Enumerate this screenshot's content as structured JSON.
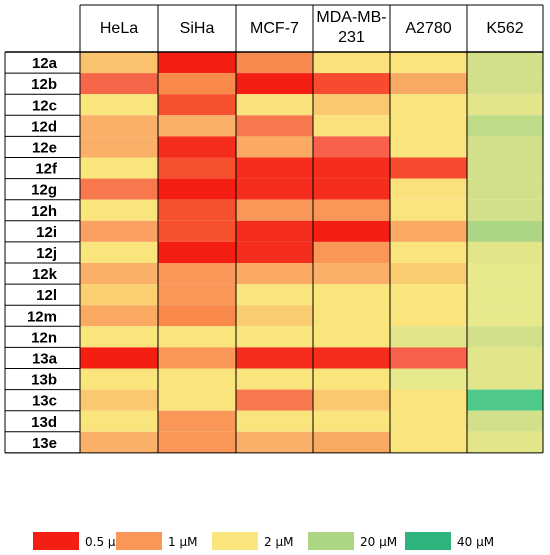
{
  "chart_data": {
    "type": "heatmap",
    "title": "",
    "xlabel": "",
    "ylabel": "",
    "columns": [
      "HeLa",
      "SiHa",
      "MCF-7",
      "MDA-MB-231",
      "A2780",
      "K562"
    ],
    "rows": [
      "12a",
      "12b",
      "12c",
      "12d",
      "12e",
      "12f",
      "12g",
      "12h",
      "12i",
      "12j",
      "12k",
      "12l",
      "12m",
      "12n",
      "13a",
      "13b",
      "13c",
      "13d",
      "13e"
    ],
    "cell_colors": [
      [
        "#FBC26E",
        "#F41E13",
        "#F78A4E",
        "#FAE17C",
        "#FAE57C",
        "#D2E08A"
      ],
      [
        "#F6674A",
        "#F98A4C",
        "#F41E13",
        "#F74A2E",
        "#F9AA62",
        "#D2E08A"
      ],
      [
        "#FAE57C",
        "#F7502F",
        "#FAE17C",
        "#FAC86E",
        "#FAE57C",
        "#E2E58A"
      ],
      [
        "#FAB068",
        "#FAB068",
        "#F7784C",
        "#FAE17C",
        "#FAE57C",
        "#BCDC88"
      ],
      [
        "#FAB068",
        "#F42D1C",
        "#FAAA62",
        "#F7604A",
        "#FAE57C",
        "#D2E08A"
      ],
      [
        "#FAE57C",
        "#F7502F",
        "#F42D1C",
        "#F42D1C",
        "#F74A2E",
        "#D2E08A"
      ],
      [
        "#F7784C",
        "#F41E13",
        "#F42D1C",
        "#F42D1C",
        "#FAE17C",
        "#D2E08A"
      ],
      [
        "#FAE57C",
        "#F7502F",
        "#F99658",
        "#F99658",
        "#FAE57C",
        "#D2E08A"
      ],
      [
        "#FAA062",
        "#F7502F",
        "#F42D1C",
        "#F41E13",
        "#FAAA62",
        "#ACD584"
      ],
      [
        "#FAE57C",
        "#F41E13",
        "#F42D1C",
        "#F99658",
        "#FAE57C",
        "#E2E58A"
      ],
      [
        "#FAB068",
        "#F99658",
        "#FAAA62",
        "#FAB068",
        "#FACC70",
        "#E8E88C"
      ],
      [
        "#FAD070",
        "#F99658",
        "#FAE57C",
        "#FAE57C",
        "#FAE57C",
        "#E8E88C"
      ],
      [
        "#FAAA62",
        "#F98A4C",
        "#FACC70",
        "#FAE57C",
        "#FAE57C",
        "#E8E88C"
      ],
      [
        "#FAE57C",
        "#FAE57C",
        "#FAE57C",
        "#FAE57C",
        "#E2E58A",
        "#D2E08A"
      ],
      [
        "#F41E13",
        "#F99658",
        "#F42D1C",
        "#F42D1C",
        "#F7604A",
        "#E2E58A"
      ],
      [
        "#FAE57C",
        "#FAE57C",
        "#FAE57C",
        "#FAE57C",
        "#E8E88C",
        "#E2E58A"
      ],
      [
        "#FAC86E",
        "#FAE57C",
        "#F7784C",
        "#FAC86E",
        "#FAE57C",
        "#4FC98A"
      ],
      [
        "#FAE57C",
        "#F99658",
        "#FAE57C",
        "#FAE57C",
        "#FAE57C",
        "#D2E08A"
      ],
      [
        "#FAB068",
        "#F99658",
        "#FAB068",
        "#F9AA62",
        "#FAE57C",
        "#E2E58A"
      ]
    ],
    "legend": {
      "placement": "bottom",
      "entries": [
        {
          "label": "0.5 μM",
          "color": "#F41E13"
        },
        {
          "label": "1 μM",
          "color": "#F99658"
        },
        {
          "label": "2 μM",
          "color": "#FAE57C"
        },
        {
          "label": "20 μM",
          "color": "#ACD584"
        },
        {
          "label": "40 μM",
          "color": "#2FB47E"
        }
      ]
    },
    "grid": true
  }
}
